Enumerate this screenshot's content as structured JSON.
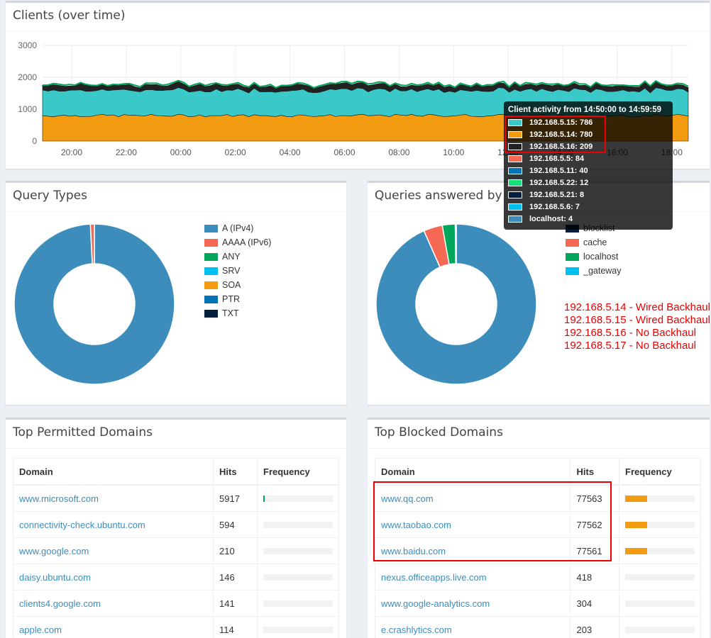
{
  "clients_panel": {
    "title": "Clients (over time)",
    "y_ticks": [
      "3000",
      "2000",
      "1000",
      "0"
    ],
    "x_ticks": [
      "20:00",
      "22:00",
      "00:00",
      "02:00",
      "04:00",
      "06:00",
      "08:00",
      "10:00",
      "12:00",
      "14:00",
      "16:00",
      "18:00"
    ]
  },
  "tooltip": {
    "title": "Client activity from 14:50:00 to 14:59:59",
    "rows": [
      {
        "label": "192.168.5.15: 786",
        "color": "#3bc8c8"
      },
      {
        "label": "192.168.5.14: 780",
        "color": "#f39c12"
      },
      {
        "label": "192.168.5.16: 209",
        "color": "#222222"
      },
      {
        "label": "192.168.5.5: 84",
        "color": "#f56954"
      },
      {
        "label": "192.168.5.11: 40",
        "color": "#0073b7"
      },
      {
        "label": "192.168.5.22: 12",
        "color": "#16e07a"
      },
      {
        "label": "192.168.5.21: 8",
        "color": "#001f3f"
      },
      {
        "label": "192.168.5.6: 7",
        "color": "#00c0ef"
      },
      {
        "label": "localhost: 4",
        "color": "#3c8dbc"
      }
    ]
  },
  "query_types": {
    "title": "Query Types",
    "legend": [
      {
        "label": "A (IPv4)",
        "color": "#3c8dbc"
      },
      {
        "label": "AAAA (IPv6)",
        "color": "#f56954"
      },
      {
        "label": "ANY",
        "color": "#00a65a"
      },
      {
        "label": "SRV",
        "color": "#00c0ef"
      },
      {
        "label": "SOA",
        "color": "#f39c12"
      },
      {
        "label": "PTR",
        "color": "#0073b7"
      },
      {
        "label": "TXT",
        "color": "#001f3f"
      }
    ]
  },
  "queries_answered": {
    "title": "Queries answered by",
    "legend": [
      {
        "label": "blocklist",
        "color": "#001f3f"
      },
      {
        "label": "cache",
        "color": "#f56954"
      },
      {
        "label": "localhost",
        "color": "#00a65a"
      },
      {
        "label": "_gateway",
        "color": "#00c0ef"
      }
    ]
  },
  "notes": [
    "192.168.5.14 - Wired Backhaul",
    "192.168.5.15 - Wired Backhaul",
    "192.168.5.16 - No Backhaul",
    "192.168.5.17 - No Backhaul"
  ],
  "permitted": {
    "title": "Top Permitted Domains",
    "headers": [
      "Domain",
      "Hits",
      "Frequency"
    ],
    "rows": [
      {
        "domain": "www.microsoft.com",
        "hits": "5917",
        "freq": 0.02,
        "color": "#00a65a"
      },
      {
        "domain": "connectivity-check.ubuntu.com",
        "hits": "594",
        "freq": 0.0,
        "color": "#00a65a"
      },
      {
        "domain": "www.google.com",
        "hits": "210",
        "freq": 0.0,
        "color": "#00a65a"
      },
      {
        "domain": "daisy.ubuntu.com",
        "hits": "146",
        "freq": 0.0,
        "color": "#00a65a"
      },
      {
        "domain": "clients4.google.com",
        "hits": "141",
        "freq": 0.0,
        "color": "#00a65a"
      },
      {
        "domain": "apple.com",
        "hits": "114",
        "freq": 0.0,
        "color": "#00a65a"
      }
    ]
  },
  "blocked": {
    "title": "Top Blocked Domains",
    "headers": [
      "Domain",
      "Hits",
      "Frequency"
    ],
    "rows": [
      {
        "domain": "www.qq.com",
        "hits": "77563",
        "freq": 0.32,
        "color": "#f39c12"
      },
      {
        "domain": "www.taobao.com",
        "hits": "77562",
        "freq": 0.32,
        "color": "#f39c12"
      },
      {
        "domain": "www.baidu.com",
        "hits": "77561",
        "freq": 0.32,
        "color": "#f39c12"
      },
      {
        "domain": "nexus.officeapps.live.com",
        "hits": "418",
        "freq": 0.0,
        "color": "#f39c12"
      },
      {
        "domain": "www.google-analytics.com",
        "hits": "304",
        "freq": 0.0,
        "color": "#f39c12"
      },
      {
        "domain": "e.crashlytics.com",
        "hits": "203",
        "freq": 0.0,
        "color": "#f39c12"
      }
    ]
  },
  "chart_data": [
    {
      "type": "area",
      "title": "Clients (over time)",
      "x": [
        "20:00",
        "22:00",
        "00:00",
        "02:00",
        "04:00",
        "06:00",
        "08:00",
        "10:00",
        "12:00",
        "14:00",
        "16:00",
        "18:00"
      ],
      "ylim": [
        0,
        3000
      ],
      "series": [
        {
          "name": "192.168.5.14",
          "values": [
            780,
            790,
            770,
            780,
            760,
            790,
            780,
            770,
            780,
            780,
            790,
            800
          ]
        },
        {
          "name": "192.168.5.15",
          "values": [
            786,
            780,
            800,
            790,
            800,
            790,
            780,
            800,
            790,
            786,
            780,
            790
          ]
        },
        {
          "name": "192.168.5.16",
          "values": [
            200,
            210,
            190,
            200,
            210,
            200,
            205,
            210,
            200,
            209,
            200,
            210
          ]
        }
      ]
    },
    {
      "type": "pie",
      "title": "Query Types",
      "categories": [
        "A (IPv4)",
        "AAAA (IPv6)",
        "ANY",
        "SRV",
        "SOA",
        "PTR",
        "TXT"
      ],
      "values": [
        99.2,
        0.8,
        0,
        0,
        0,
        0,
        0
      ]
    },
    {
      "type": "pie",
      "title": "Queries answered by",
      "categories": [
        "blocklist",
        "cache",
        "localhost",
        "_gateway"
      ],
      "values": [
        93.4,
        3.8,
        2.6,
        0.2
      ]
    }
  ]
}
